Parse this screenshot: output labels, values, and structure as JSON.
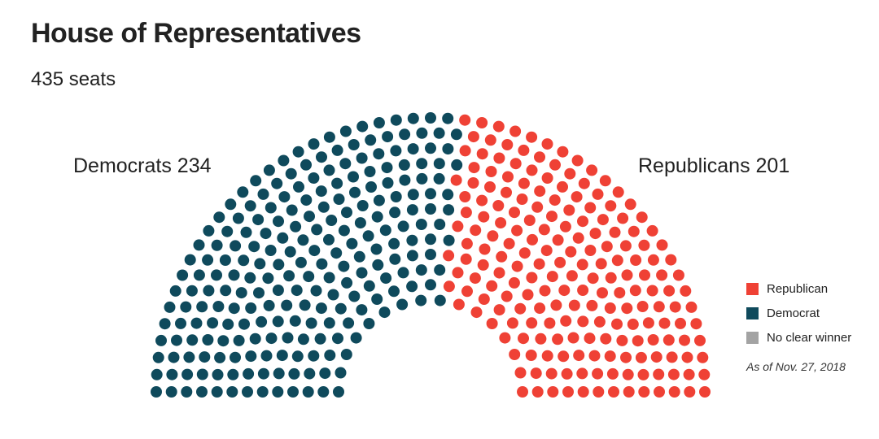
{
  "title": "House of Representatives",
  "subtitle": "435 seats",
  "chart_data": {
    "type": "parliament",
    "total_seats": 435,
    "series": [
      {
        "name": "Democrat",
        "label": "Democrats",
        "value": 234,
        "color": "#0f4a5c"
      },
      {
        "name": "Republican",
        "label": "Republicans",
        "value": 201,
        "color": "#ef4135"
      },
      {
        "name": "No clear winner",
        "value": 0,
        "color": "#a3a3a3"
      }
    ],
    "labels": {
      "dem": "Democrats 234",
      "rep": "Republicans 201"
    },
    "legend": [
      {
        "label": "Republican",
        "color": "#ef4135"
      },
      {
        "label": "Democrat",
        "color": "#0f4a5c"
      },
      {
        "label": "No clear winner",
        "color": "#a3a3a3"
      }
    ],
    "legend_position": "right",
    "note": "As of Nov. 27, 2018"
  }
}
